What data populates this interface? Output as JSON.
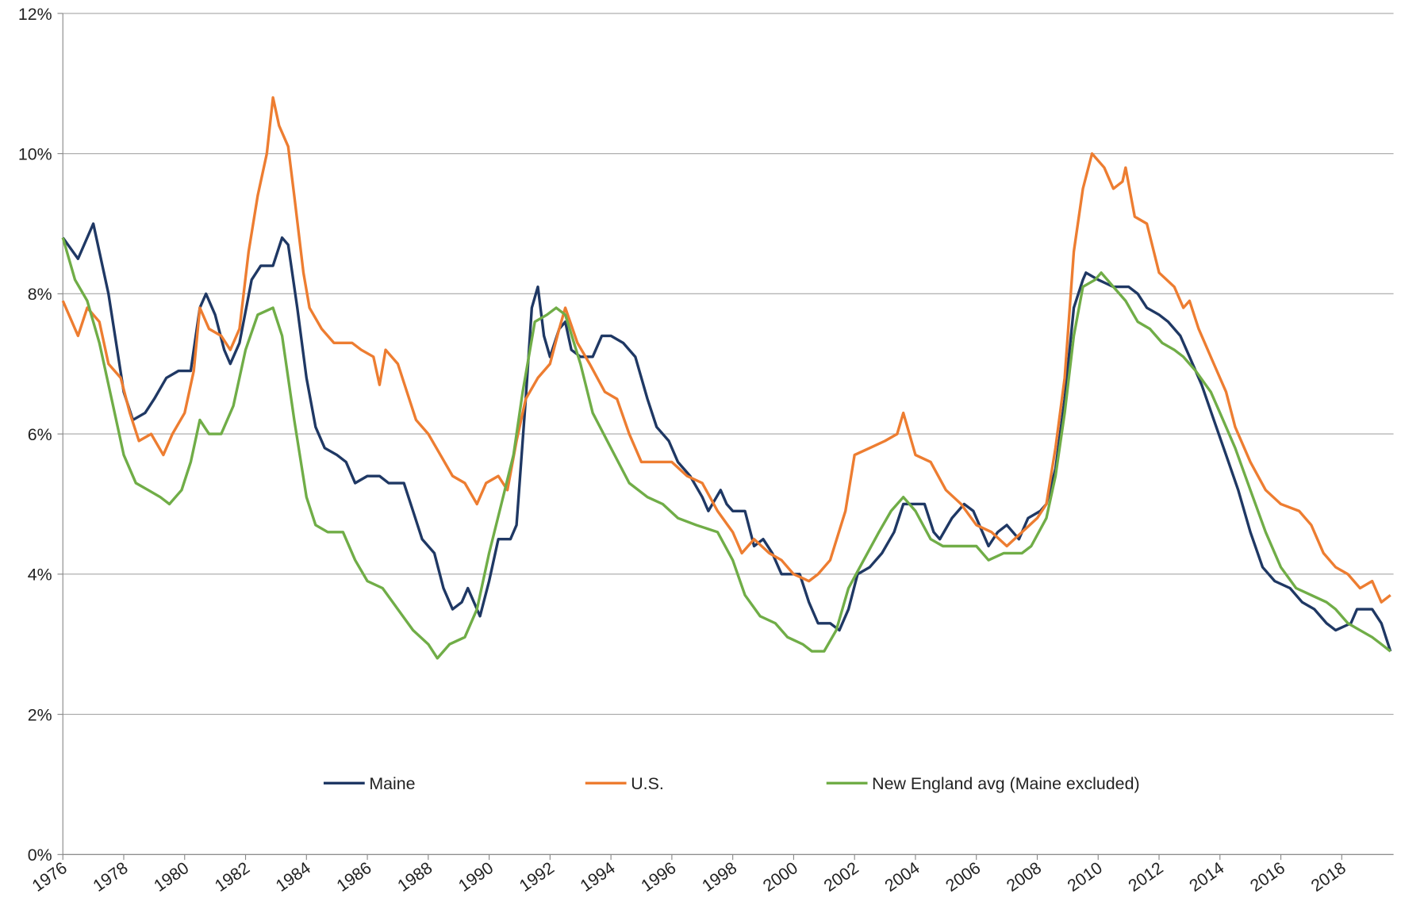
{
  "chart_data": {
    "type": "line",
    "xlim": [
      1976,
      2019.7
    ],
    "xticks": [
      1976,
      1978,
      1980,
      1982,
      1984,
      1986,
      1988,
      1990,
      1992,
      1994,
      1996,
      1998,
      2000,
      2002,
      2004,
      2006,
      2008,
      2010,
      2012,
      2014,
      2016,
      2018
    ],
    "ylim": [
      0,
      12
    ],
    "yticks": [
      {
        "value": 0,
        "label": "0%"
      },
      {
        "value": 2,
        "label": "2%"
      },
      {
        "value": 4,
        "label": "4%"
      },
      {
        "value": 6,
        "label": "6%"
      },
      {
        "value": 8,
        "label": "8%"
      },
      {
        "value": 10,
        "label": "10%"
      },
      {
        "value": 12,
        "label": "12%"
      }
    ],
    "grid": true,
    "legend": "lower center",
    "series": [
      {
        "name": "Maine",
        "color": "#1f3864",
        "x": [
          1976,
          1976.5,
          1977,
          1977.5,
          1978,
          1978.3,
          1978.7,
          1979,
          1979.4,
          1979.8,
          1980.2,
          1980.5,
          1980.7,
          1981,
          1981.3,
          1981.5,
          1981.8,
          1982.2,
          1982.5,
          1982.9,
          1983.2,
          1983.4,
          1983.7,
          1984,
          1984.3,
          1984.6,
          1985,
          1985.3,
          1985.6,
          1986,
          1986.4,
          1986.7,
          1987.2,
          1987.5,
          1987.8,
          1988.2,
          1988.5,
          1988.8,
          1989.1,
          1989.3,
          1989.7,
          1990,
          1990.3,
          1990.7,
          1990.9,
          1991.2,
          1991.4,
          1991.6,
          1991.8,
          1992,
          1992.3,
          1992.5,
          1992.7,
          1993,
          1993.4,
          1993.7,
          1994,
          1994.4,
          1994.8,
          1995.2,
          1995.5,
          1995.9,
          1996.2,
          1996.6,
          1997,
          1997.2,
          1997.6,
          1997.8,
          1998,
          1998.4,
          1998.7,
          1999,
          1999.3,
          1999.6,
          2000.2,
          2000.5,
          2000.8,
          2001.2,
          2001.5,
          2001.8,
          2002.1,
          2002.5,
          2002.9,
          2003.3,
          2003.6,
          2004,
          2004.3,
          2004.6,
          2004.8,
          2005.2,
          2005.6,
          2005.9,
          2006.2,
          2006.4,
          2006.7,
          2007,
          2007.4,
          2007.7,
          2008.1,
          2008.3,
          2008.6,
          2008.9,
          2009.2,
          2009.5,
          2009.6,
          2010,
          2010.5,
          2011,
          2011.3,
          2011.6,
          2012,
          2012.3,
          2012.7,
          2013,
          2013.4,
          2013.8,
          2014.2,
          2014.6,
          2015,
          2015.4,
          2015.8,
          2016.3,
          2016.7,
          2017.1,
          2017.5,
          2017.8,
          2018.3,
          2018.5,
          2019,
          2019.3,
          2019.6
        ],
        "values": [
          8.8,
          8.5,
          9.0,
          8.0,
          6.6,
          6.2,
          6.3,
          6.5,
          6.8,
          6.9,
          6.9,
          7.8,
          8.0,
          7.7,
          7.2,
          7.0,
          7.3,
          8.2,
          8.4,
          8.4,
          8.8,
          8.7,
          7.8,
          6.8,
          6.1,
          5.8,
          5.7,
          5.6,
          5.3,
          5.4,
          5.4,
          5.3,
          5.3,
          4.9,
          4.5,
          4.3,
          3.8,
          3.5,
          3.6,
          3.8,
          3.4,
          3.9,
          4.5,
          4.5,
          4.7,
          6.5,
          7.8,
          8.1,
          7.4,
          7.1,
          7.5,
          7.6,
          7.2,
          7.1,
          7.1,
          7.4,
          7.4,
          7.3,
          7.1,
          6.5,
          6.1,
          5.9,
          5.6,
          5.4,
          5.1,
          4.9,
          5.2,
          5.0,
          4.9,
          4.9,
          4.4,
          4.5,
          4.3,
          4.0,
          4.0,
          3.6,
          3.3,
          3.3,
          3.2,
          3.5,
          4.0,
          4.1,
          4.3,
          4.6,
          5.0,
          5.0,
          5.0,
          4.6,
          4.5,
          4.8,
          5.0,
          4.9,
          4.6,
          4.4,
          4.6,
          4.7,
          4.5,
          4.8,
          4.9,
          5.0,
          5.5,
          6.5,
          7.8,
          8.2,
          8.3,
          8.2,
          8.1,
          8.1,
          8.0,
          7.8,
          7.7,
          7.6,
          7.4,
          7.1,
          6.7,
          6.2,
          5.7,
          5.2,
          4.6,
          4.1,
          3.9,
          3.8,
          3.6,
          3.5,
          3.3,
          3.2,
          3.3,
          3.5,
          3.5,
          3.3,
          2.9
        ]
      },
      {
        "name": "U.S.",
        "color": "#ed7d31",
        "x": [
          1976,
          1976.3,
          1976.5,
          1976.8,
          1977.2,
          1977.5,
          1977.9,
          1978.2,
          1978.5,
          1978.9,
          1979.3,
          1979.6,
          1980,
          1980.3,
          1980.5,
          1980.8,
          1981.2,
          1981.5,
          1981.8,
          1982.1,
          1982.4,
          1982.7,
          1982.9,
          1983.1,
          1983.4,
          1983.6,
          1983.9,
          1984.1,
          1984.5,
          1984.9,
          1985.5,
          1985.8,
          1986.2,
          1986.4,
          1986.6,
          1987,
          1987.3,
          1987.6,
          1988,
          1988.4,
          1988.8,
          1989.2,
          1989.6,
          1989.9,
          1990.3,
          1990.6,
          1990.9,
          1991.2,
          1991.6,
          1992,
          1992.3,
          1992.5,
          1992.9,
          1993.3,
          1993.8,
          1994.2,
          1994.6,
          1995,
          1995.5,
          1996,
          1996.5,
          1997,
          1997.5,
          1998,
          1998.3,
          1998.7,
          1999.2,
          1999.6,
          2000,
          2000.5,
          2000.8,
          2001.2,
          2001.7,
          2002,
          2002.5,
          2003,
          2003.4,
          2003.6,
          2004,
          2004.5,
          2005,
          2005.5,
          2006,
          2006.5,
          2007,
          2007.5,
          2008,
          2008.3,
          2008.6,
          2008.9,
          2009.2,
          2009.5,
          2009.8,
          2010.2,
          2010.5,
          2010.8,
          2010.9,
          2011.2,
          2011.6,
          2012,
          2012.5,
          2012.8,
          2013,
          2013.3,
          2013.8,
          2014.2,
          2014.5,
          2015,
          2015.5,
          2016,
          2016.6,
          2017,
          2017.4,
          2017.8,
          2018.2,
          2018.6,
          2019,
          2019.3,
          2019.6
        ],
        "values": [
          7.9,
          7.6,
          7.4,
          7.8,
          7.6,
          7.0,
          6.8,
          6.3,
          5.9,
          6.0,
          5.7,
          6.0,
          6.3,
          6.9,
          7.8,
          7.5,
          7.4,
          7.2,
          7.5,
          8.6,
          9.4,
          10.0,
          10.8,
          10.4,
          10.1,
          9.4,
          8.3,
          7.8,
          7.5,
          7.3,
          7.3,
          7.2,
          7.1,
          6.7,
          7.2,
          7.0,
          6.6,
          6.2,
          6.0,
          5.7,
          5.4,
          5.3,
          5.0,
          5.3,
          5.4,
          5.2,
          5.9,
          6.5,
          6.8,
          7.0,
          7.5,
          7.8,
          7.3,
          7.0,
          6.6,
          6.5,
          6.0,
          5.6,
          5.6,
          5.6,
          5.4,
          5.3,
          4.9,
          4.6,
          4.3,
          4.5,
          4.3,
          4.2,
          4.0,
          3.9,
          4.0,
          4.2,
          4.9,
          5.7,
          5.8,
          5.9,
          6.0,
          6.3,
          5.7,
          5.6,
          5.2,
          5.0,
          4.7,
          4.6,
          4.4,
          4.6,
          4.8,
          5.0,
          5.8,
          6.8,
          8.6,
          9.5,
          10.0,
          9.8,
          9.5,
          9.6,
          9.8,
          9.1,
          9.0,
          8.3,
          8.1,
          7.8,
          7.9,
          7.5,
          7.0,
          6.6,
          6.1,
          5.6,
          5.2,
          5.0,
          4.9,
          4.7,
          4.3,
          4.1,
          4.0,
          3.8,
          3.9,
          3.6,
          3.7
        ]
      },
      {
        "name": "New England avg (Maine excluded)",
        "color": "#70ad47",
        "x": [
          1976,
          1976.4,
          1976.8,
          1977.2,
          1977.6,
          1978,
          1978.4,
          1978.8,
          1979.2,
          1979.5,
          1979.9,
          1980.2,
          1980.5,
          1980.8,
          1981.2,
          1981.6,
          1982,
          1982.4,
          1982.9,
          1983.2,
          1983.6,
          1984,
          1984.3,
          1984.7,
          1985.2,
          1985.6,
          1986,
          1986.5,
          1987,
          1987.5,
          1988,
          1988.3,
          1988.7,
          1989.2,
          1989.6,
          1990,
          1990.4,
          1990.8,
          1991.1,
          1991.5,
          1991.9,
          1992.2,
          1992.5,
          1993,
          1993.4,
          1994,
          1994.6,
          1995.2,
          1995.7,
          1996.2,
          1996.8,
          1997.5,
          1998,
          1998.4,
          1998.9,
          1999.4,
          1999.8,
          2000.3,
          2000.6,
          2001,
          2001.4,
          2001.8,
          2002.3,
          2002.8,
          2003.2,
          2003.6,
          2004,
          2004.5,
          2004.9,
          2005.5,
          2006,
          2006.4,
          2006.9,
          2007.5,
          2007.8,
          2008.3,
          2008.6,
          2008.9,
          2009.2,
          2009.5,
          2009.9,
          2010.1,
          2010.5,
          2010.9,
          2011.3,
          2011.7,
          2012.1,
          2012.5,
          2012.8,
          2013.2,
          2013.7,
          2014,
          2014.5,
          2015,
          2015.5,
          2016,
          2016.5,
          2017,
          2017.5,
          2017.8,
          2018.2,
          2018.6,
          2019,
          2019.3,
          2019.6
        ],
        "values": [
          8.8,
          8.2,
          7.9,
          7.3,
          6.5,
          5.7,
          5.3,
          5.2,
          5.1,
          5.0,
          5.2,
          5.6,
          6.2,
          6.0,
          6.0,
          6.4,
          7.2,
          7.7,
          7.8,
          7.4,
          6.2,
          5.1,
          4.7,
          4.6,
          4.6,
          4.2,
          3.9,
          3.8,
          3.5,
          3.2,
          3.0,
          2.8,
          3.0,
          3.1,
          3.5,
          4.3,
          5.0,
          5.7,
          6.6,
          7.6,
          7.7,
          7.8,
          7.7,
          7.0,
          6.3,
          5.8,
          5.3,
          5.1,
          5.0,
          4.8,
          4.7,
          4.6,
          4.2,
          3.7,
          3.4,
          3.3,
          3.1,
          3.0,
          2.9,
          2.9,
          3.2,
          3.8,
          4.2,
          4.6,
          4.9,
          5.1,
          4.9,
          4.5,
          4.4,
          4.4,
          4.4,
          4.2,
          4.3,
          4.3,
          4.4,
          4.8,
          5.4,
          6.3,
          7.4,
          8.1,
          8.2,
          8.3,
          8.1,
          7.9,
          7.6,
          7.5,
          7.3,
          7.2,
          7.1,
          6.9,
          6.6,
          6.3,
          5.8,
          5.2,
          4.6,
          4.1,
          3.8,
          3.7,
          3.6,
          3.5,
          3.3,
          3.2,
          3.1,
          3.0,
          2.9
        ]
      }
    ]
  }
}
